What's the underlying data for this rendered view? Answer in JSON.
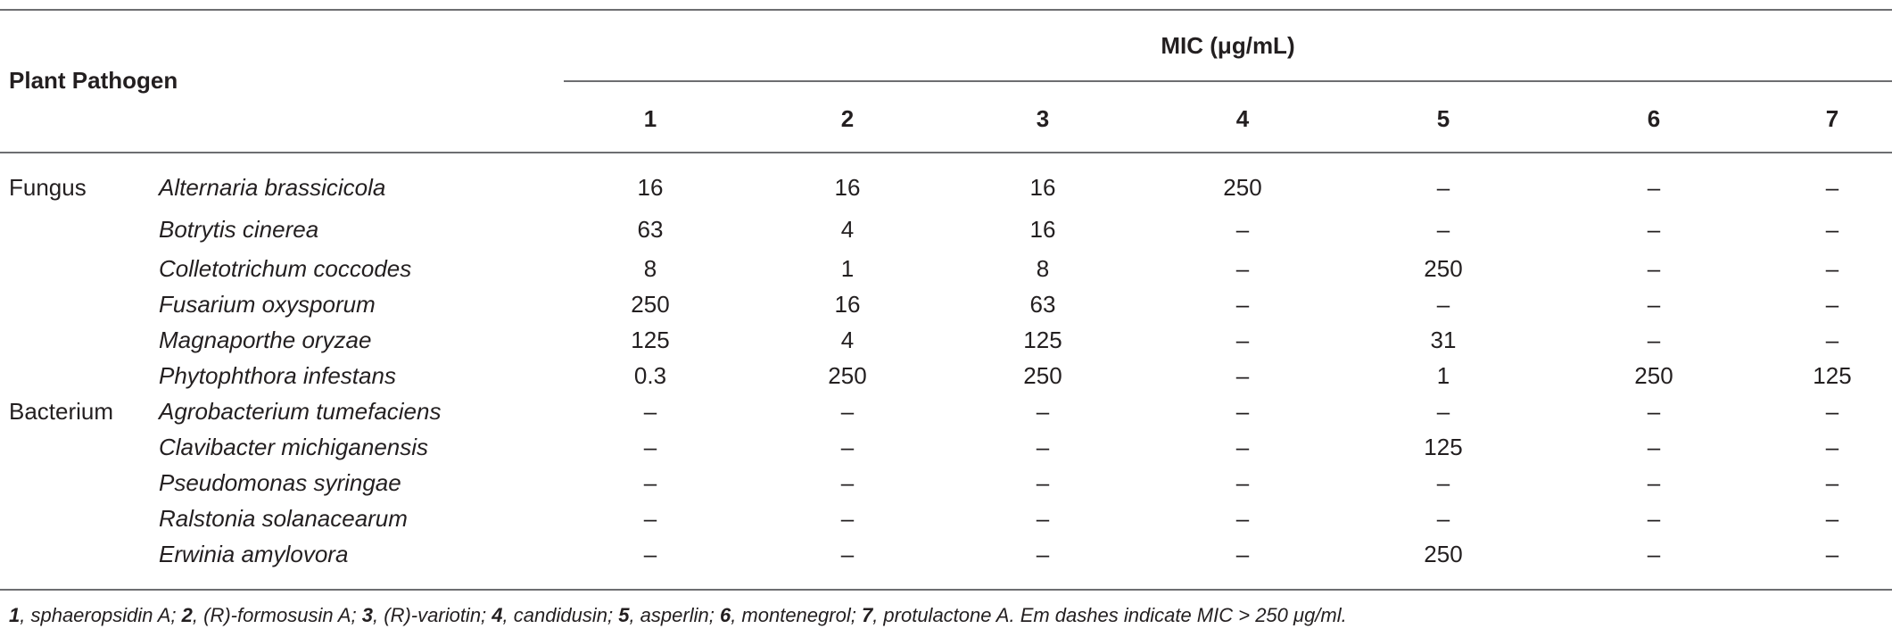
{
  "header": {
    "pathogen_label": "Plant Pathogen",
    "mic_label": "MIC (μg/mL)",
    "columns": [
      "1",
      "2",
      "3",
      "4",
      "5",
      "6",
      "7"
    ]
  },
  "rows": [
    {
      "category": "Fungus",
      "name": "Alternaria brassicicola",
      "values": [
        "16",
        "16",
        "16",
        "250",
        "–",
        "–",
        "–"
      ]
    },
    {
      "category": "",
      "name": "Botrytis cinerea",
      "values": [
        "63",
        "4",
        "16",
        "–",
        "–",
        "–",
        "–"
      ]
    },
    {
      "category": "",
      "name": "Colletotrichum coccodes",
      "values": [
        "8",
        "1",
        "8",
        "–",
        "250",
        "–",
        "–"
      ]
    },
    {
      "category": "",
      "name": "Fusarium oxysporum",
      "values": [
        "250",
        "16",
        "63",
        "–",
        "–",
        "–",
        "–"
      ]
    },
    {
      "category": "",
      "name": "Magnaporthe oryzae",
      "values": [
        "125",
        "4",
        "125",
        "–",
        "31",
        "–",
        "–"
      ]
    },
    {
      "category": "",
      "name": "Phytophthora infestans",
      "values": [
        "0.3",
        "250",
        "250",
        "–",
        "1",
        "250",
        "125"
      ]
    },
    {
      "category": "Bacterium",
      "name": "Agrobacterium tumefaciens",
      "values": [
        "–",
        "–",
        "–",
        "–",
        "–",
        "–",
        "–"
      ]
    },
    {
      "category": "",
      "name": "Clavibacter michiganensis",
      "values": [
        "–",
        "–",
        "–",
        "–",
        "125",
        "–",
        "–"
      ]
    },
    {
      "category": "",
      "name": "Pseudomonas syringae",
      "values": [
        "–",
        "–",
        "–",
        "–",
        "–",
        "–",
        "–"
      ]
    },
    {
      "category": "",
      "name": "Ralstonia solanacearum",
      "values": [
        "–",
        "–",
        "–",
        "–",
        "–",
        "–",
        "–"
      ]
    },
    {
      "category": "",
      "name": "Erwinia amylovora",
      "values": [
        "–",
        "–",
        "–",
        "–",
        "250",
        "–",
        "–"
      ]
    }
  ],
  "footnote": {
    "items": [
      {
        "num": "1",
        "text": ", sphaeropsidin A; "
      },
      {
        "num": "2",
        "text": ", (R)-formosusin A; "
      },
      {
        "num": "3",
        "text": ", (R)-variotin; "
      },
      {
        "num": "4",
        "text": ", candidusin; "
      },
      {
        "num": "5",
        "text": ", asperlin; "
      },
      {
        "num": "6",
        "text": ", montenegrol; "
      },
      {
        "num": "7",
        "text": ", protulactone A. Em dashes indicate MIC > 250 μg/ml."
      }
    ]
  }
}
